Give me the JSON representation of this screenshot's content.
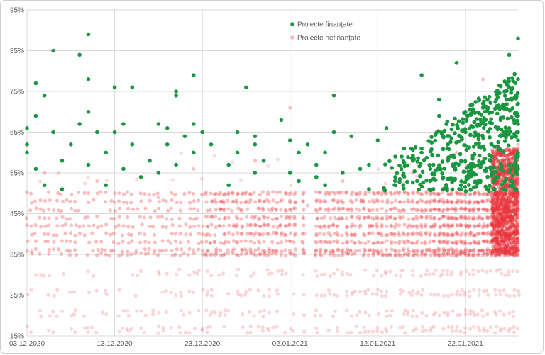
{
  "chart_data": {
    "type": "scatter",
    "title": "",
    "xlabel": "",
    "ylabel": "",
    "x_type": "date",
    "xlim": [
      "2020-12-03",
      "2021-01-28"
    ],
    "ylim": [
      15,
      95
    ],
    "y_unit": "%",
    "y_ticks": [
      15,
      25,
      35,
      45,
      55,
      65,
      75,
      85,
      95
    ],
    "y_tick_labels": [
      "15%",
      "25%",
      "35%",
      "45%",
      "55%",
      "65%",
      "75%",
      "85%",
      "95%"
    ],
    "x_ticks": [
      "2020-12-03",
      "2020-12-13",
      "2020-12-23",
      "2021-01-02",
      "2021-01-12",
      "2021-01-22"
    ],
    "x_tick_labels": [
      "03.12.2020",
      "13.12.2020",
      "23.12.2020",
      "02.01.2021",
      "12.01.2021",
      "22.01.2021"
    ],
    "grid": true,
    "legend_position": "top-center",
    "series": [
      {
        "name": "Proiecte finanțate",
        "color": "#1a9641",
        "points": [
          [
            "2020-12-03",
            62
          ],
          [
            "2020-12-03",
            60
          ],
          [
            "2020-12-03",
            66
          ],
          [
            "2020-12-04",
            77
          ],
          [
            "2020-12-04",
            69
          ],
          [
            "2020-12-04",
            56
          ],
          [
            "2020-12-05",
            74
          ],
          [
            "2020-12-05",
            52
          ],
          [
            "2020-12-06",
            85
          ],
          [
            "2020-12-06",
            65
          ],
          [
            "2020-12-07",
            51
          ],
          [
            "2020-12-07",
            58
          ],
          [
            "2020-12-08",
            62
          ],
          [
            "2020-12-09",
            84
          ],
          [
            "2020-12-09",
            67
          ],
          [
            "2020-12-10",
            89
          ],
          [
            "2020-12-10",
            78
          ],
          [
            "2020-12-10",
            70
          ],
          [
            "2020-12-10",
            57
          ],
          [
            "2020-12-11",
            65
          ],
          [
            "2020-12-12",
            60
          ],
          [
            "2020-12-12",
            52
          ],
          [
            "2020-12-13",
            76
          ],
          [
            "2020-12-13",
            65
          ],
          [
            "2020-12-14",
            67
          ],
          [
            "2020-12-14",
            56
          ],
          [
            "2020-12-15",
            76
          ],
          [
            "2020-12-15",
            62
          ],
          [
            "2020-12-16",
            54
          ],
          [
            "2020-12-17",
            58
          ],
          [
            "2020-12-18",
            67
          ],
          [
            "2020-12-18",
            55
          ],
          [
            "2020-12-19",
            66
          ],
          [
            "2020-12-19",
            62
          ],
          [
            "2020-12-20",
            74
          ],
          [
            "2020-12-20",
            75
          ],
          [
            "2020-12-20",
            57
          ],
          [
            "2020-12-21",
            64
          ],
          [
            "2020-12-22",
            60
          ],
          [
            "2020-12-22",
            79
          ],
          [
            "2020-12-22",
            67
          ],
          [
            "2020-12-23",
            65
          ],
          [
            "2020-12-24",
            62
          ],
          [
            "2020-12-26",
            57
          ],
          [
            "2020-12-26",
            52
          ],
          [
            "2020-12-27",
            60
          ],
          [
            "2020-12-27",
            65
          ],
          [
            "2020-12-28",
            76
          ],
          [
            "2020-12-29",
            62
          ],
          [
            "2020-12-29",
            64
          ],
          [
            "2020-12-29",
            55
          ],
          [
            "2020-12-30",
            58
          ],
          [
            "2021-01-01",
            68
          ],
          [
            "2021-01-02",
            63
          ],
          [
            "2021-01-02",
            55
          ],
          [
            "2021-01-03",
            60
          ],
          [
            "2021-01-03",
            53
          ],
          [
            "2021-01-04",
            62
          ],
          [
            "2021-01-05",
            57
          ],
          [
            "2021-01-05",
            54
          ],
          [
            "2021-01-06",
            60
          ],
          [
            "2021-01-06",
            52
          ],
          [
            "2021-01-07",
            74
          ],
          [
            "2021-01-07",
            65
          ],
          [
            "2021-01-08",
            55
          ],
          [
            "2021-01-09",
            64
          ],
          [
            "2021-01-10",
            56
          ],
          [
            "2021-01-11",
            57
          ],
          [
            "2021-01-11",
            51
          ],
          [
            "2021-01-12",
            63
          ],
          [
            "2021-01-13",
            66
          ],
          [
            "2021-01-14",
            59
          ],
          [
            "2021-01-14",
            54
          ],
          [
            "2021-01-15",
            61
          ],
          [
            "2021-01-16",
            58
          ],
          [
            "2021-01-17",
            79
          ],
          [
            "2021-01-17",
            61
          ],
          [
            "2021-01-18",
            56
          ],
          [
            "2021-01-18",
            53
          ],
          [
            "2021-01-19",
            69
          ],
          [
            "2021-01-19",
            73
          ],
          [
            "2021-01-20",
            62
          ],
          [
            "2021-01-20",
            58
          ],
          [
            "2021-01-21",
            82
          ],
          [
            "2021-01-22",
            70
          ],
          [
            "2021-01-22",
            65
          ],
          [
            "2021-01-23",
            64
          ],
          [
            "2021-01-24",
            71
          ],
          [
            "2021-01-24",
            72
          ],
          [
            "2021-01-25",
            59
          ],
          [
            "2021-01-25",
            62
          ],
          [
            "2021-01-25",
            55
          ],
          [
            "2021-01-26",
            68
          ],
          [
            "2021-01-26",
            64
          ],
          [
            "2021-01-27",
            84
          ],
          [
            "2021-01-27",
            76
          ],
          [
            "2021-01-27",
            66
          ],
          [
            "2021-01-27",
            57
          ],
          [
            "2021-01-28",
            88
          ],
          [
            "2021-01-28",
            78
          ],
          [
            "2021-01-28",
            69
          ],
          [
            "2021-01-28",
            63
          ],
          [
            "2021-01-28",
            59
          ],
          [
            "2021-01-28",
            56
          ],
          [
            "2021-01-28",
            72
          ],
          [
            "2021-01-28",
            65
          ],
          [
            "2021-01-28",
            67
          ],
          [
            "2021-01-28",
            60
          ]
        ]
      },
      {
        "name": "Proiecte nefinanțate",
        "color": "#e8343b",
        "y_bands": [
          16,
          17,
          20,
          21,
          25,
          26,
          30,
          31,
          35,
          36,
          38,
          40,
          42,
          44,
          46,
          48,
          50
        ],
        "points": [
          [
            "2020-12-05",
            55
          ],
          [
            "2020-12-11",
            53
          ],
          [
            "2020-12-18",
            49
          ],
          [
            "2020-12-22",
            56
          ],
          [
            "2020-12-25",
            46
          ],
          [
            "2020-12-29",
            58
          ],
          [
            "2021-01-02",
            71
          ],
          [
            "2021-01-04",
            47
          ],
          [
            "2021-01-08",
            53
          ],
          [
            "2021-01-13",
            50
          ],
          [
            "2021-01-16",
            55
          ],
          [
            "2021-01-19",
            57
          ],
          [
            "2021-01-21",
            60
          ],
          [
            "2021-01-24",
            78
          ],
          [
            "2021-01-26",
            55
          ],
          [
            "2021-01-27",
            58
          ],
          [
            "2021-01-28",
            62
          ],
          [
            "2021-01-28",
            53
          ]
        ]
      }
    ]
  }
}
